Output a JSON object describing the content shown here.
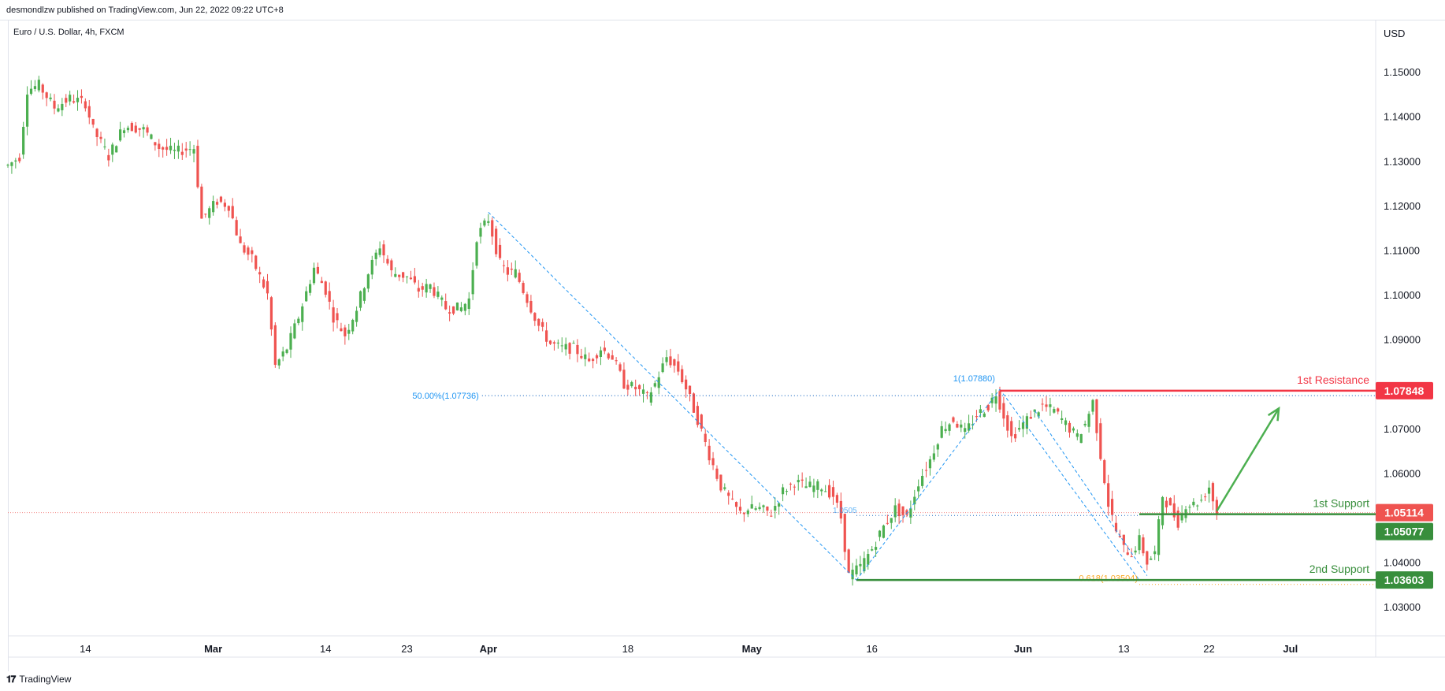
{
  "header": {
    "published": "desmondlzw published on TradingView.com, Jun 22, 2022 09:22 UTC+8"
  },
  "symbol_title": "Euro / U.S. Dollar, 4h, FXCM",
  "currency": "USD",
  "footer": {
    "brand": "TradingView",
    "logo_icon": "tradingview-logo-icon"
  },
  "colors": {
    "up": "#26a69a",
    "candle_up": "#4caf50",
    "candle_down": "#ef5350",
    "resistance": "#f23645",
    "support": "#388e3c",
    "fib": "#2962ff",
    "fib_gold": "#f9a825",
    "arrow": "#4caf50"
  },
  "chart_data": {
    "type": "candlestick",
    "ylim": [
      1.0235,
      1.1615
    ],
    "yticks": [
      "1.15000",
      "1.14000",
      "1.13000",
      "1.12000",
      "1.11000",
      "1.10000",
      "1.09000",
      "1.07000",
      "1.06000",
      "1.04000",
      "1.03000"
    ],
    "xticks": [
      {
        "label": "14",
        "bar": 20
      },
      {
        "label": "Mar",
        "bar": 53
      },
      {
        "label": "14",
        "bar": 82
      },
      {
        "label": "23",
        "bar": 103
      },
      {
        "label": "Apr",
        "bar": 124
      },
      {
        "label": "18",
        "bar": 160
      },
      {
        "label": "May",
        "bar": 192
      },
      {
        "label": "16",
        "bar": 223
      },
      {
        "label": "Jun",
        "bar": 262
      },
      {
        "label": "13",
        "bar": 288
      },
      {
        "label": "22",
        "bar": 310
      },
      {
        "label": "Jul",
        "bar": 331
      }
    ],
    "bars_total": 353,
    "price_path": [
      [
        0,
        1.129
      ],
      [
        3,
        1.131
      ],
      [
        5,
        1.146
      ],
      [
        8,
        1.147
      ],
      [
        12,
        1.142
      ],
      [
        16,
        1.144
      ],
      [
        20,
        1.143
      ],
      [
        22,
        1.137
      ],
      [
        26,
        1.131
      ],
      [
        30,
        1.138
      ],
      [
        35,
        1.137
      ],
      [
        39,
        1.133
      ],
      [
        43,
        1.132
      ],
      [
        48,
        1.133
      ],
      [
        50,
        1.117
      ],
      [
        54,
        1.121
      ],
      [
        57,
        1.12
      ],
      [
        60,
        1.111
      ],
      [
        63,
        1.108
      ],
      [
        67,
        1.1
      ],
      [
        69,
        1.084
      ],
      [
        72,
        1.088
      ],
      [
        75,
        1.095
      ],
      [
        79,
        1.106
      ],
      [
        82,
        1.101
      ],
      [
        84,
        1.095
      ],
      [
        87,
        1.091
      ],
      [
        90,
        1.097
      ],
      [
        93,
        1.105
      ],
      [
        96,
        1.111
      ],
      [
        99,
        1.105
      ],
      [
        103,
        1.104
      ],
      [
        106,
        1.101
      ],
      [
        109,
        1.102
      ],
      [
        113,
        1.097
      ],
      [
        117,
        1.097
      ],
      [
        119,
        1.099
      ],
      [
        121,
        1.113
      ],
      [
        124,
        1.117
      ],
      [
        127,
        1.107
      ],
      [
        129,
        1.105
      ],
      [
        131,
        1.105
      ],
      [
        134,
        1.099
      ],
      [
        137,
        1.093
      ],
      [
        140,
        1.089
      ],
      [
        143,
        1.088
      ],
      [
        146,
        1.088
      ],
      [
        150,
        1.085
      ],
      [
        153,
        1.088
      ],
      [
        156,
        1.086
      ],
      [
        159,
        1.08
      ],
      [
        162,
        1.079
      ],
      [
        165,
        1.077
      ],
      [
        167,
        1.08
      ],
      [
        170,
        1.086
      ],
      [
        173,
        1.083
      ],
      [
        175,
        1.079
      ],
      [
        178,
        1.072
      ],
      [
        181,
        1.064
      ],
      [
        184,
        1.057
      ],
      [
        187,
        1.053
      ],
      [
        189,
        1.051
      ],
      [
        191,
        1.052
      ],
      [
        194,
        1.052
      ],
      [
        197,
        1.051
      ],
      [
        200,
        1.056
      ],
      [
        203,
        1.058
      ],
      [
        206,
        1.057
      ],
      [
        210,
        1.057
      ],
      [
        213,
        1.055
      ],
      [
        215,
        1.05
      ],
      [
        217,
        1.037
      ],
      [
        220,
        1.039
      ],
      [
        223,
        1.043
      ],
      [
        226,
        1.048
      ],
      [
        229,
        1.052
      ],
      [
        232,
        1.05
      ],
      [
        235,
        1.058
      ],
      [
        238,
        1.063
      ],
      [
        241,
        1.07
      ],
      [
        244,
        1.072
      ],
      [
        247,
        1.069
      ],
      [
        250,
        1.073
      ],
      [
        253,
        1.075
      ],
      [
        255,
        1.078
      ],
      [
        257,
        1.073
      ],
      [
        259,
        1.068
      ],
      [
        261,
        1.07
      ],
      [
        264,
        1.073
      ],
      [
        267,
        1.075
      ],
      [
        270,
        1.074
      ],
      [
        273,
        1.071
      ],
      [
        276,
        1.068
      ],
      [
        278,
        1.071
      ],
      [
        280,
        1.076
      ],
      [
        282,
        1.064
      ],
      [
        284,
        1.053
      ],
      [
        286,
        1.047
      ],
      [
        288,
        1.043
      ],
      [
        290,
        1.042
      ],
      [
        292,
        1.045
      ],
      [
        294,
        1.04
      ],
      [
        296,
        1.042
      ],
      [
        298,
        1.055
      ],
      [
        300,
        1.052
      ],
      [
        302,
        1.049
      ],
      [
        304,
        1.053
      ],
      [
        306,
        1.053
      ],
      [
        308,
        1.054
      ],
      [
        310,
        1.057
      ],
      [
        312,
        1.051
      ]
    ],
    "levels": [
      {
        "name": "1st Resistance",
        "value": 1.07848,
        "label": "1.07848",
        "from_bar": 256
      },
      {
        "name": "1st Support",
        "value": 1.05077,
        "label": "1.05077",
        "from_bar": 292
      },
      {
        "name": "2nd Support",
        "value": 1.03603,
        "label": "1.03603",
        "from_bar": 219
      }
    ],
    "last_price": {
      "value": 1.05114,
      "label": "1.05114"
    },
    "fib_annotations": [
      {
        "label": "50.00%(1.07736)",
        "value": 1.07736,
        "from_bar": 124,
        "to_bar": 350
      },
      {
        "label": "1(1.07880)",
        "value": 1.0788,
        "bar": 256
      },
      {
        "label": "0.618(1.03504)",
        "value": 1.03504,
        "from_bar": 292,
        "to_bar": 350
      },
      {
        "label": "1.0505",
        "value": 1.0505,
        "from_bar": 219,
        "to_bar": 292
      }
    ],
    "fib_lines": [
      [
        [
          124,
          1.1185
        ],
        [
          219,
          1.036
        ]
      ],
      [
        [
          219,
          1.036
        ],
        [
          256,
          1.0788
        ]
      ],
      [
        [
          256,
          1.0788
        ],
        [
          292,
          1.036
        ]
      ],
      [
        [
          265,
          1.074
        ],
        [
          294,
          1.037
        ]
      ]
    ],
    "projection_arrow": [
      [
        312,
        1.0515
      ],
      [
        328,
        1.0745
      ]
    ]
  }
}
